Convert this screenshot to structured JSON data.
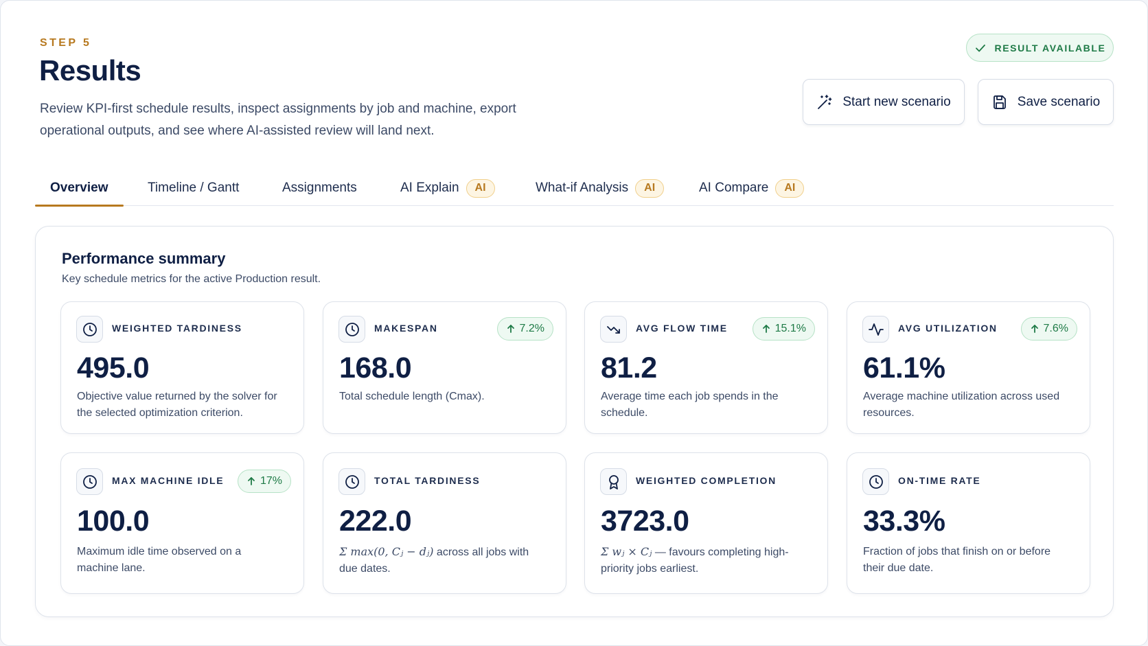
{
  "header": {
    "step": "STEP 5",
    "title": "Results",
    "description": "Review KPI-first schedule results, inspect assignments by job and machine, export operational outputs, and see where AI-assisted review will land next.",
    "status": "RESULT AVAILABLE",
    "status_icon": "check-icon",
    "status_color": "#1e7a46"
  },
  "actions": {
    "new_scenario": "Start new scenario",
    "new_scenario_icon": "magic-wand-icon",
    "save_scenario": "Save scenario",
    "save_scenario_icon": "save-icon"
  },
  "tabs": [
    {
      "label": "Overview",
      "active": true
    },
    {
      "label": "Timeline / Gantt"
    },
    {
      "label": "Assignments"
    },
    {
      "label": "AI Explain",
      "badge": "AI"
    },
    {
      "label": "What-if Analysis",
      "badge": "AI"
    },
    {
      "label": "AI Compare",
      "badge": "AI"
    }
  ],
  "accent_color": "#b7791f",
  "summary": {
    "title": "Performance summary",
    "subtitle": "Key schedule metrics for the active Production result.",
    "metrics": [
      {
        "label": "WEIGHTED TARDINESS",
        "value": "495.0",
        "icon": "clock-icon",
        "desc": "Objective value returned by the solver for the selected optimization criterion."
      },
      {
        "label": "MAKESPAN",
        "value": "168.0",
        "icon": "clock-icon",
        "delta": "7.2%",
        "desc": "Total schedule length (Cmax)."
      },
      {
        "label": "AVG FLOW TIME",
        "value": "81.2",
        "icon": "trend-icon",
        "delta": "15.1%",
        "desc": "Average time each job spends in the schedule."
      },
      {
        "label": "AVG UTILIZATION",
        "value": "61.1%",
        "icon": "activity-icon",
        "delta": "7.6%",
        "desc": "Average machine utilization across used resources."
      },
      {
        "label": "MAX MACHINE IDLE",
        "value": "100.0",
        "icon": "clock-icon",
        "delta": "17%",
        "desc": "Maximum idle time observed on a machine lane."
      },
      {
        "label": "TOTAL TARDINESS",
        "value": "222.0",
        "icon": "clock-icon",
        "desc_formula": "Σ max(0, Cⱼ − dⱼ)",
        "desc": " across all jobs with due dates."
      },
      {
        "label": "WEIGHTED COMPLETION",
        "value": "3723.0",
        "icon": "award-icon",
        "desc_formula": "Σ wⱼ × Cⱼ",
        "desc": " — favours completing high-priority jobs earliest."
      },
      {
        "label": "ON-TIME RATE",
        "value": "33.3%",
        "icon": "clock-icon",
        "desc": "Fraction of jobs that finish on or before their due date."
      }
    ]
  }
}
